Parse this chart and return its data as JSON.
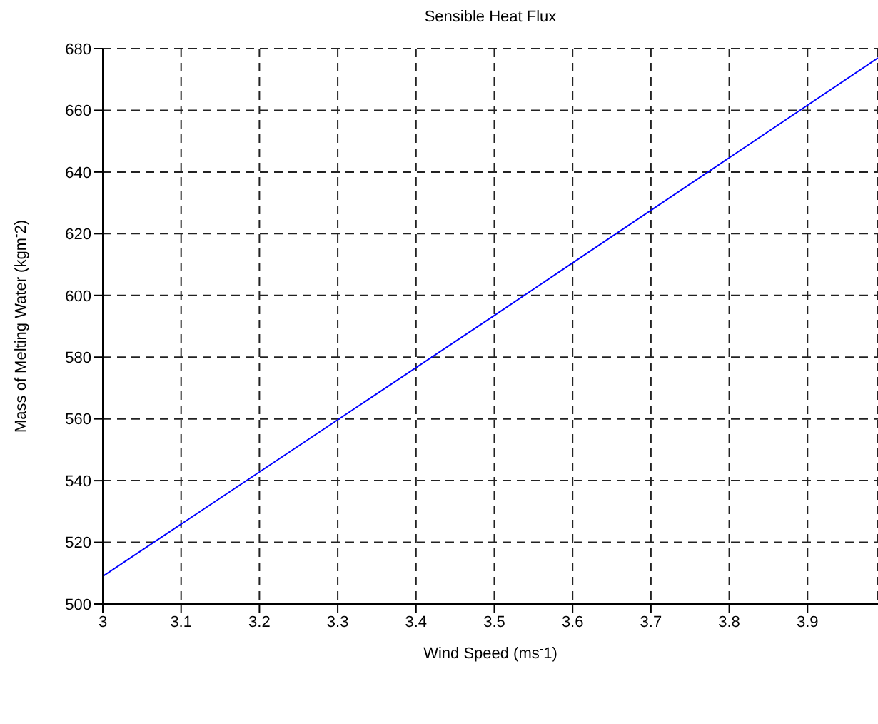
{
  "chart_data": {
    "type": "line",
    "title": "Sensible Heat Flux",
    "xlabel": "Wind Speed (ms$^{-}$1)",
    "ylabel": "Mass of Melting Water (kgm$^{-}$2)",
    "x": [
      3,
      3.5,
      3.99
    ],
    "series": [
      {
        "color": "#0000ff",
        "values": [
          509,
          593.5,
          677
        ]
      }
    ],
    "xlim": [
      3,
      3.99
    ],
    "xticks": [
      3,
      3.1,
      3.2,
      3.3,
      3.4,
      3.5,
      3.6,
      3.7,
      3.8,
      3.9
    ],
    "ylim": [
      500,
      680
    ],
    "yticks": [
      500,
      520,
      540,
      560,
      580,
      600,
      620,
      640,
      660,
      680
    ],
    "grid": true,
    "line_style": "solid",
    "marker": "none"
  }
}
